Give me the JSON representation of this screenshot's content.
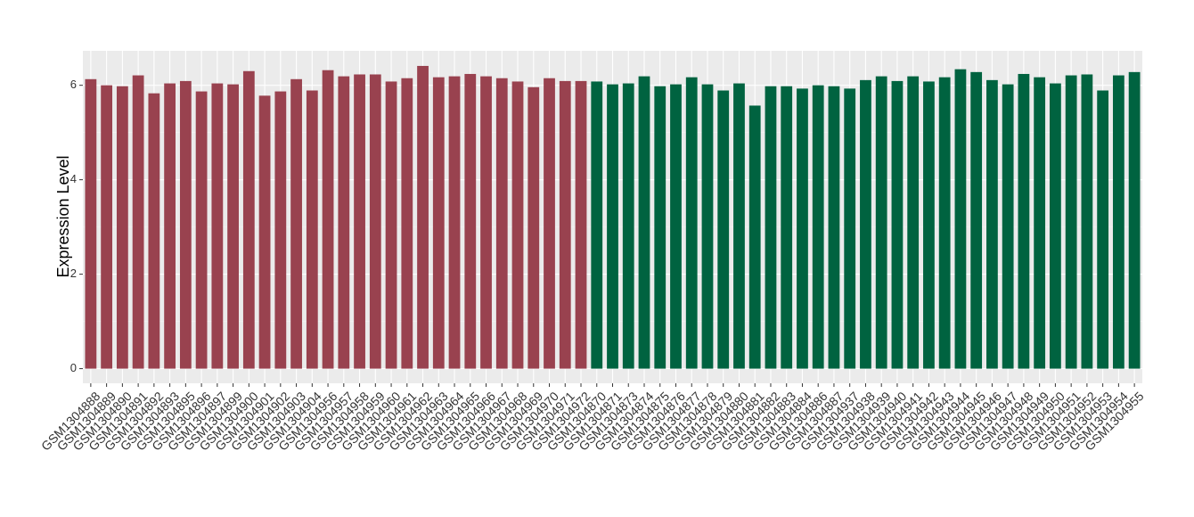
{
  "chart_data": {
    "type": "bar",
    "y_label": "Expression Level",
    "categories": [
      "GSM1304888",
      "GSM1304889",
      "GSM1304890",
      "GSM1304891",
      "GSM1304892",
      "GSM1304893",
      "GSM1304895",
      "GSM1304896",
      "GSM1304897",
      "GSM1304899",
      "GSM1304900",
      "GSM1304901",
      "GSM1304902",
      "GSM1304903",
      "GSM1304904",
      "GSM1304956",
      "GSM1304957",
      "GSM1304958",
      "GSM1304959",
      "GSM1304960",
      "GSM1304961",
      "GSM1304962",
      "GSM1304963",
      "GSM1304964",
      "GSM1304965",
      "GSM1304966",
      "GSM1304967",
      "GSM1304968",
      "GSM1304969",
      "GSM1304970",
      "GSM1304971",
      "GSM1304972",
      "GSM1304870",
      "GSM1304871",
      "GSM1304873",
      "GSM1304874",
      "GSM1304875",
      "GSM1304876",
      "GSM1304877",
      "GSM1304878",
      "GSM1304879",
      "GSM1304880",
      "GSM1304881",
      "GSM1304882",
      "GSM1304883",
      "GSM1304884",
      "GSM1304886",
      "GSM1304887",
      "GSM1304937",
      "GSM1304938",
      "GSM1304939",
      "GSM1304940",
      "GSM1304941",
      "GSM1304942",
      "GSM1304943",
      "GSM1304944",
      "GSM1304945",
      "GSM1304946",
      "GSM1304947",
      "GSM1304948",
      "GSM1304949",
      "GSM1304950",
      "GSM1304951",
      "GSM1304952",
      "GSM1304953",
      "GSM1304954",
      "GSM1304955"
    ],
    "values": [
      6.13,
      6.0,
      5.98,
      6.21,
      5.83,
      6.04,
      6.09,
      5.87,
      6.04,
      6.02,
      6.3,
      5.78,
      5.87,
      6.13,
      5.89,
      6.32,
      6.19,
      6.23,
      6.23,
      6.08,
      6.15,
      6.41,
      6.17,
      6.19,
      6.24,
      6.19,
      6.15,
      6.08,
      5.96,
      6.15,
      6.09,
      6.09,
      6.08,
      6.02,
      6.04,
      6.19,
      5.98,
      6.02,
      6.17,
      6.02,
      5.89,
      6.04,
      5.57,
      5.98,
      5.98,
      5.93,
      6.0,
      5.98,
      5.93,
      6.11,
      6.19,
      6.09,
      6.19,
      6.08,
      6.17,
      6.34,
      6.28,
      6.11,
      6.02,
      6.24,
      6.17,
      6.04,
      6.21,
      6.23,
      5.89,
      6.21,
      6.28
    ],
    "colors": [
      "#99424f",
      "#99424f",
      "#99424f",
      "#99424f",
      "#99424f",
      "#99424f",
      "#99424f",
      "#99424f",
      "#99424f",
      "#99424f",
      "#99424f",
      "#99424f",
      "#99424f",
      "#99424f",
      "#99424f",
      "#99424f",
      "#99424f",
      "#99424f",
      "#99424f",
      "#99424f",
      "#99424f",
      "#99424f",
      "#99424f",
      "#99424f",
      "#99424f",
      "#99424f",
      "#99424f",
      "#99424f",
      "#99424f",
      "#99424f",
      "#99424f",
      "#99424f",
      "#006340",
      "#006340",
      "#006340",
      "#006340",
      "#006340",
      "#006340",
      "#006340",
      "#006340",
      "#006340",
      "#006340",
      "#006340",
      "#006340",
      "#006340",
      "#006340",
      "#006340",
      "#006340",
      "#006340",
      "#006340",
      "#006340",
      "#006340",
      "#006340",
      "#006340",
      "#006340",
      "#006340",
      "#006340",
      "#006340",
      "#006340",
      "#006340",
      "#006340",
      "#006340",
      "#006340",
      "#006340",
      "#006340",
      "#006340",
      "#006340"
    ],
    "ylim": [
      -0.31,
      6.73
    ],
    "yticks": [
      0,
      2,
      4,
      6
    ],
    "grid": true
  }
}
